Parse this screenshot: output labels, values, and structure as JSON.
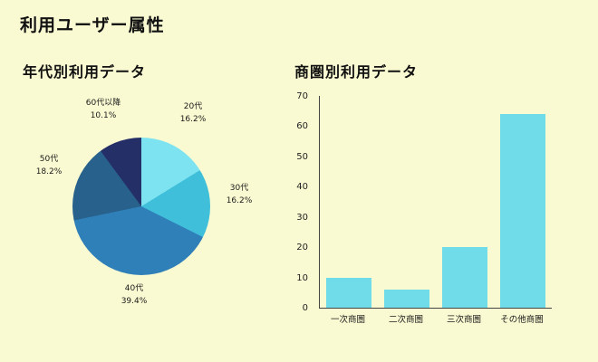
{
  "page": {
    "title": "利用ユーザー属性"
  },
  "colors": {
    "background": "#FAFAD2",
    "text": "#111111",
    "axis": "#444444"
  },
  "chart_data": [
    {
      "type": "pie",
      "title": "年代別利用データ",
      "labels": [
        "20代",
        "30代",
        "40代",
        "50代",
        "60代以降"
      ],
      "values": [
        16.2,
        16.2,
        39.4,
        18.2,
        10.1
      ],
      "value_labels": [
        "16.2%",
        "16.2%",
        "39.4%",
        "18.2%",
        "10.1%"
      ],
      "colors": [
        "#7EE3F0",
        "#3FBFDA",
        "#2F7FB8",
        "#28618C",
        "#232F66"
      ],
      "start_angle": "top",
      "direction": "clockwise",
      "legend": "none"
    },
    {
      "type": "bar",
      "title": "商圏別利用データ",
      "categories": [
        "一次商圏",
        "二次商圏",
        "三次商圏",
        "その他商圏"
      ],
      "values": [
        10,
        6,
        20,
        64
      ],
      "ylim": [
        0,
        70
      ],
      "yticks": [
        0,
        10,
        20,
        30,
        40,
        50,
        60,
        70
      ],
      "bar_color": "#70DCEA",
      "grid": false,
      "legend": false
    }
  ]
}
